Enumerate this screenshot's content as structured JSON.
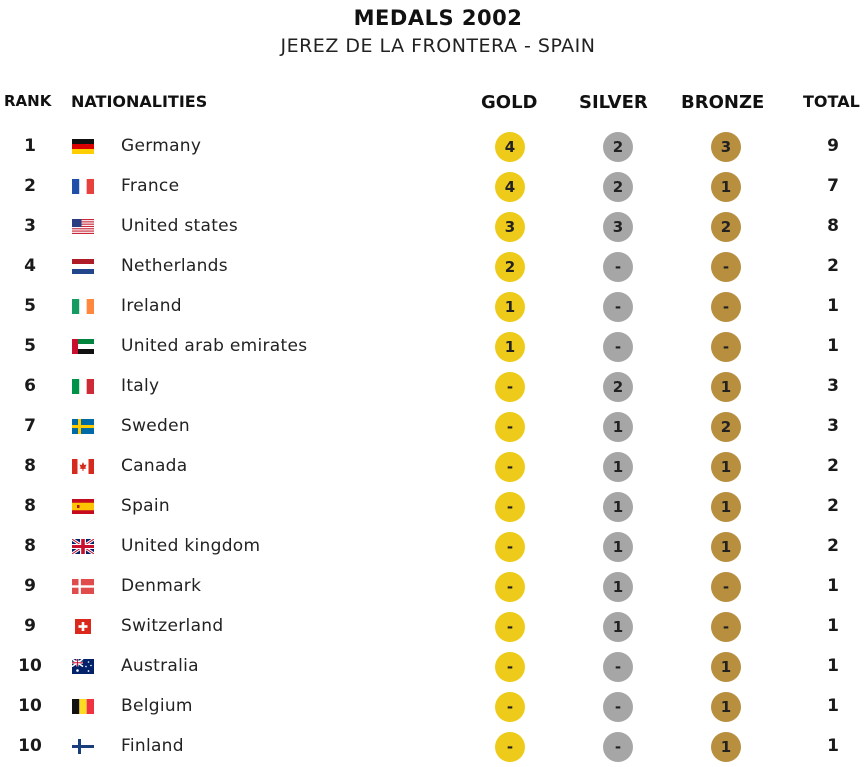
{
  "title": "MEDALS 2002",
  "subtitle": "JEREZ DE LA FRONTERA - SPAIN",
  "headers": {
    "rank": "RANK",
    "nationalities": "NATIONALITIES",
    "gold": "GOLD",
    "silver": "SILVER",
    "bronze": "BRONZE",
    "total": "TOTAL"
  },
  "colors": {
    "gold": "#eecb1a",
    "silver": "#a6a6a6",
    "bronze": "#b88e3f"
  },
  "rows": [
    {
      "rank": "1",
      "country": "Germany",
      "flag": "germany-flag-icon",
      "gold": "4",
      "silver": "2",
      "bronze": "3",
      "total": "9"
    },
    {
      "rank": "2",
      "country": "France",
      "flag": "france-flag-icon",
      "gold": "4",
      "silver": "2",
      "bronze": "1",
      "total": "7"
    },
    {
      "rank": "3",
      "country": "United states",
      "flag": "usa-flag-icon",
      "gold": "3",
      "silver": "3",
      "bronze": "2",
      "total": "8"
    },
    {
      "rank": "4",
      "country": "Netherlands",
      "flag": "netherlands-flag-icon",
      "gold": "2",
      "silver": "-",
      "bronze": "-",
      "total": "2"
    },
    {
      "rank": "5",
      "country": "Ireland",
      "flag": "ireland-flag-icon",
      "gold": "1",
      "silver": "-",
      "bronze": "-",
      "total": "1"
    },
    {
      "rank": "5",
      "country": "United arab emirates",
      "flag": "uae-flag-icon",
      "gold": "1",
      "silver": "-",
      "bronze": "-",
      "total": "1"
    },
    {
      "rank": "6",
      "country": "Italy",
      "flag": "italy-flag-icon",
      "gold": "-",
      "silver": "2",
      "bronze": "1",
      "total": "3"
    },
    {
      "rank": "7",
      "country": "Sweden",
      "flag": "sweden-flag-icon",
      "gold": "-",
      "silver": "1",
      "bronze": "2",
      "total": "3"
    },
    {
      "rank": "8",
      "country": "Canada",
      "flag": "canada-flag-icon",
      "gold": "-",
      "silver": "1",
      "bronze": "1",
      "total": "2"
    },
    {
      "rank": "8",
      "country": "Spain",
      "flag": "spain-flag-icon",
      "gold": "-",
      "silver": "1",
      "bronze": "1",
      "total": "2"
    },
    {
      "rank": "8",
      "country": "United kingdom",
      "flag": "uk-flag-icon",
      "gold": "-",
      "silver": "1",
      "bronze": "1",
      "total": "2"
    },
    {
      "rank": "9",
      "country": "Denmark",
      "flag": "denmark-flag-icon",
      "gold": "-",
      "silver": "1",
      "bronze": "-",
      "total": "1"
    },
    {
      "rank": "9",
      "country": "Switzerland",
      "flag": "switzerland-flag-icon",
      "gold": "-",
      "silver": "1",
      "bronze": "-",
      "total": "1"
    },
    {
      "rank": "10",
      "country": "Australia",
      "flag": "australia-flag-icon",
      "gold": "-",
      "silver": "-",
      "bronze": "1",
      "total": "1"
    },
    {
      "rank": "10",
      "country": "Belgium",
      "flag": "belgium-flag-icon",
      "gold": "-",
      "silver": "-",
      "bronze": "1",
      "total": "1"
    },
    {
      "rank": "10",
      "country": "Finland",
      "flag": "finland-flag-icon",
      "gold": "-",
      "silver": "-",
      "bronze": "1",
      "total": "1"
    }
  ]
}
